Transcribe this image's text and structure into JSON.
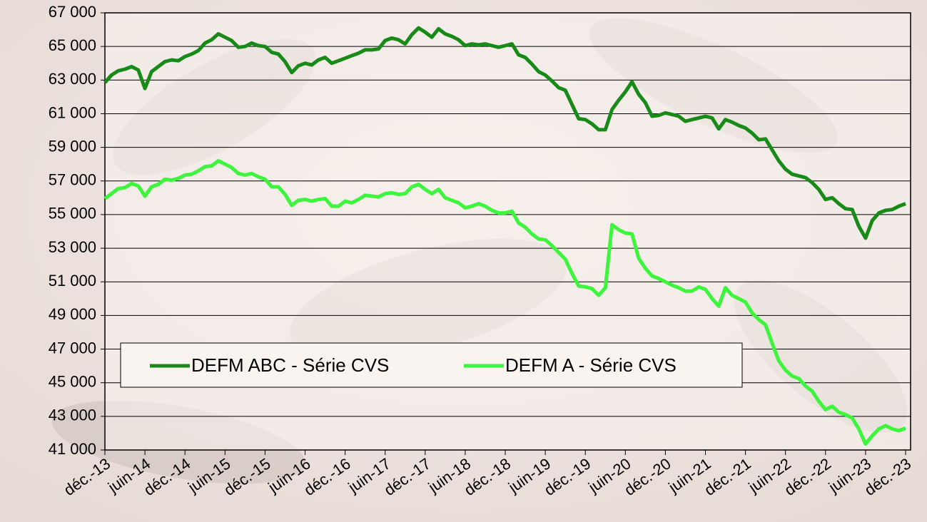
{
  "chart_data": {
    "type": "line",
    "categories": [
      "déc.-13",
      null,
      null,
      null,
      null,
      null,
      "juin-14",
      null,
      null,
      null,
      null,
      null,
      "déc.-14",
      null,
      null,
      null,
      null,
      null,
      "juin-15",
      null,
      null,
      null,
      null,
      null,
      "déc.-15",
      null,
      null,
      null,
      null,
      null,
      "juin-16",
      null,
      null,
      null,
      null,
      null,
      "déc.-16",
      null,
      null,
      null,
      null,
      null,
      "juin-17",
      null,
      null,
      null,
      null,
      null,
      "déc.-17",
      null,
      null,
      null,
      null,
      null,
      "juin-18",
      null,
      null,
      null,
      null,
      null,
      "déc.-18",
      null,
      null,
      null,
      null,
      null,
      "juin-19",
      null,
      null,
      null,
      null,
      null,
      "déc.-19",
      null,
      null,
      null,
      null,
      null,
      "juin-20",
      null,
      null,
      null,
      null,
      null,
      "déc.-20",
      null,
      null,
      null,
      null,
      null,
      "juin-21",
      null,
      null,
      null,
      null,
      null,
      "déc.-21",
      null,
      null,
      null,
      null,
      null,
      "juin-22",
      null,
      null,
      null,
      null,
      null,
      "déc.-22",
      null,
      null,
      null,
      null,
      null,
      "juin-23",
      null,
      null,
      null,
      null,
      null,
      "déc.-23"
    ],
    "series": [
      {
        "name": "DEFM ABC - Série CVS",
        "color": "#178a17",
        "values": [
          62850,
          63300,
          63550,
          63650,
          63800,
          63600,
          62500,
          63500,
          63800,
          64100,
          64200,
          64150,
          64400,
          64550,
          64750,
          65200,
          65400,
          65750,
          65550,
          65350,
          64950,
          65000,
          65200,
          65050,
          65000,
          64650,
          64550,
          64100,
          63450,
          63850,
          64000,
          63900,
          64200,
          64350,
          64000,
          64150,
          64300,
          64450,
          64600,
          64800,
          64800,
          64850,
          65350,
          65500,
          65400,
          65150,
          65700,
          66100,
          65850,
          65550,
          66050,
          65750,
          65600,
          65400,
          65050,
          65150,
          65100,
          65150,
          65050,
          64950,
          65050,
          65150,
          64500,
          64350,
          63950,
          63500,
          63300,
          62950,
          62550,
          62400,
          61550,
          60700,
          60650,
          60400,
          60050,
          60050,
          61250,
          61800,
          62300,
          62900,
          62150,
          61650,
          60850,
          60900,
          61050,
          60950,
          60850,
          60550,
          60650,
          60750,
          60850,
          60750,
          60100,
          60650,
          60500,
          60300,
          60150,
          59850,
          59450,
          59500,
          58850,
          58200,
          57700,
          57400,
          57300,
          57200,
          56900,
          56500,
          55900,
          56000,
          55650,
          55350,
          55300,
          54300,
          53600,
          54650,
          55100,
          55250,
          55300,
          55500,
          55650
        ]
      },
      {
        "name": "DEFM A - Série CVS",
        "color": "#3cf53c",
        "values": [
          55950,
          56250,
          56550,
          56600,
          56850,
          56700,
          56100,
          56650,
          56800,
          57100,
          57050,
          57150,
          57350,
          57400,
          57600,
          57850,
          57900,
          58200,
          58000,
          57800,
          57450,
          57350,
          57450,
          57250,
          57100,
          56650,
          56650,
          56200,
          55550,
          55850,
          55900,
          55800,
          55900,
          55950,
          55500,
          55500,
          55800,
          55700,
          55900,
          56150,
          56100,
          56050,
          56250,
          56300,
          56200,
          56250,
          56650,
          56800,
          56500,
          56250,
          56500,
          56000,
          55850,
          55700,
          55400,
          55500,
          55650,
          55500,
          55250,
          55100,
          55100,
          55200,
          54500,
          54250,
          53850,
          53550,
          53500,
          53150,
          52750,
          52350,
          51500,
          50750,
          50700,
          50600,
          50200,
          50650,
          54400,
          54100,
          53900,
          53850,
          52400,
          51800,
          51350,
          51200,
          51000,
          50800,
          50650,
          50450,
          50450,
          50700,
          50550,
          50000,
          49550,
          50650,
          50200,
          50000,
          49800,
          49150,
          48750,
          48450,
          47350,
          46300,
          45750,
          45400,
          45250,
          44800,
          44500,
          43900,
          43400,
          43600,
          43250,
          43100,
          42900,
          42250,
          41350,
          41850,
          42250,
          42450,
          42250,
          42150,
          42300
        ]
      }
    ],
    "ylim": [
      41000,
      67000
    ],
    "yticks": [
      {
        "value": 41000,
        "label": "41 000"
      },
      {
        "value": 43000,
        "label": "43 000"
      },
      {
        "value": 45000,
        "label": "45 000"
      },
      {
        "value": 47000,
        "label": "47 000"
      },
      {
        "value": 49000,
        "label": "49 000"
      },
      {
        "value": 51000,
        "label": "51 000"
      },
      {
        "value": 53000,
        "label": "53 000"
      },
      {
        "value": 55000,
        "label": "55 000"
      },
      {
        "value": 57000,
        "label": "57 000"
      },
      {
        "value": 59000,
        "label": "59 000"
      },
      {
        "value": 61000,
        "label": "61 000"
      },
      {
        "value": 63000,
        "label": "63 000"
      },
      {
        "value": 65000,
        "label": "65 000"
      },
      {
        "value": 67000,
        "label": "67 000"
      }
    ],
    "grid": true
  }
}
